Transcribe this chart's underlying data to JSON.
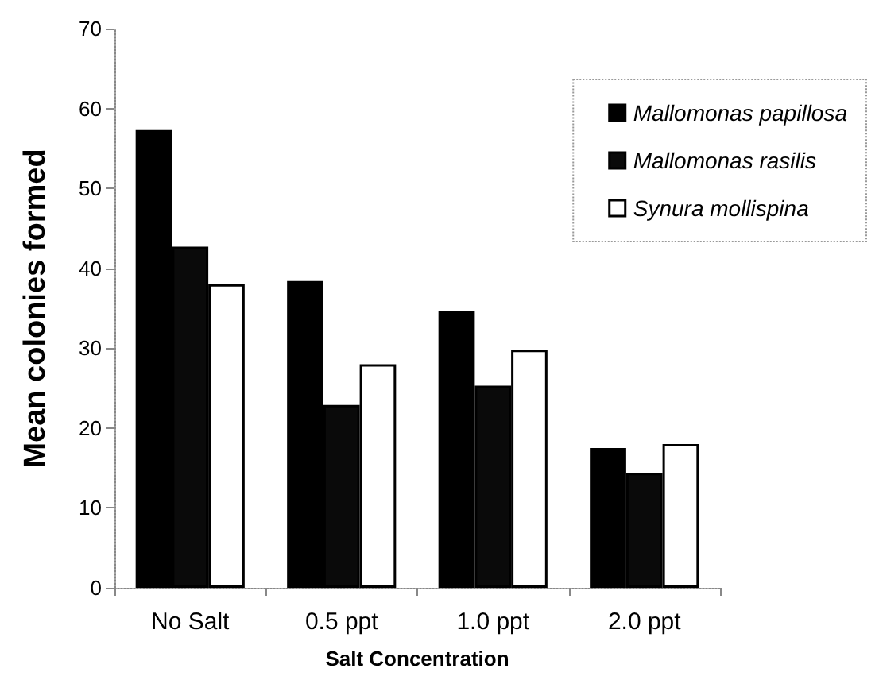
{
  "chart_data": {
    "type": "bar",
    "xlabel": "Salt Concentration",
    "ylabel": "Mean colonies formed",
    "categories": [
      "No Salt",
      "0.5 ppt",
      "1.0 ppt",
      "2.0 ppt"
    ],
    "series": [
      {
        "name": "Mallomonas papillosa",
        "color": "#000000",
        "values": [
          57.3,
          38.4,
          34.7,
          17.5
        ]
      },
      {
        "name": "Mallomonas rasilis",
        "color": "#0a0a0a",
        "values": [
          42.7,
          22.9,
          25.3,
          14.4
        ]
      },
      {
        "name": "Synura mollispina",
        "color": "#ffffff",
        "values": [
          38.0,
          28.0,
          29.8,
          18.0
        ]
      }
    ],
    "ylim": [
      0,
      70
    ],
    "yticks": [
      0,
      10,
      20,
      30,
      40,
      50,
      60,
      70
    ],
    "grid": false,
    "legend": "top right"
  }
}
